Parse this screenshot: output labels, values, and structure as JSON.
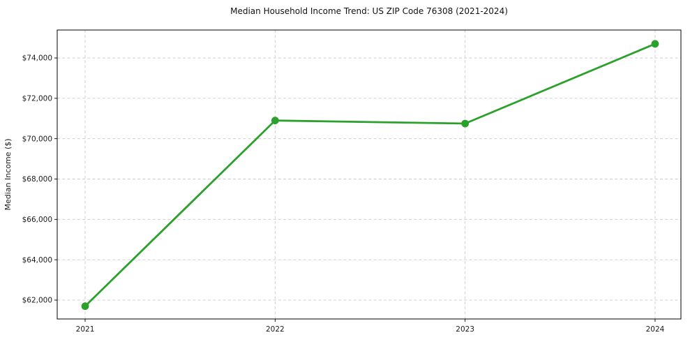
{
  "chart_data": {
    "type": "line",
    "title": "Median Household Income Trend: US ZIP Code 76308 (2021-2024)",
    "xlabel": "",
    "ylabel": "Median Income ($)",
    "x": [
      2021,
      2022,
      2023,
      2024
    ],
    "x_tick_labels": [
      "2021",
      "2022",
      "2023",
      "2024"
    ],
    "series": [
      {
        "name": "Median Household Income",
        "values": [
          61700,
          70900,
          70750,
          74700
        ],
        "color": "#2ca02c",
        "marker": "circle"
      }
    ],
    "y_ticks": [
      62000,
      64000,
      66000,
      68000,
      70000,
      72000,
      74000
    ],
    "y_tick_labels": [
      "$62,000",
      "$64,000",
      "$66,000",
      "$68,000",
      "$70,000",
      "$72,000",
      "$74,000"
    ],
    "xlim": [
      2020.853,
      2024.136
    ],
    "ylim": [
      61065,
      75385
    ],
    "grid": true,
    "grid_style": "dashed",
    "legend": "none",
    "colors": {
      "line": "#2ca02c",
      "grid": "#c9c9c9",
      "frame": "#000000",
      "text": "#1a1a1a",
      "background": "#ffffff"
    }
  }
}
